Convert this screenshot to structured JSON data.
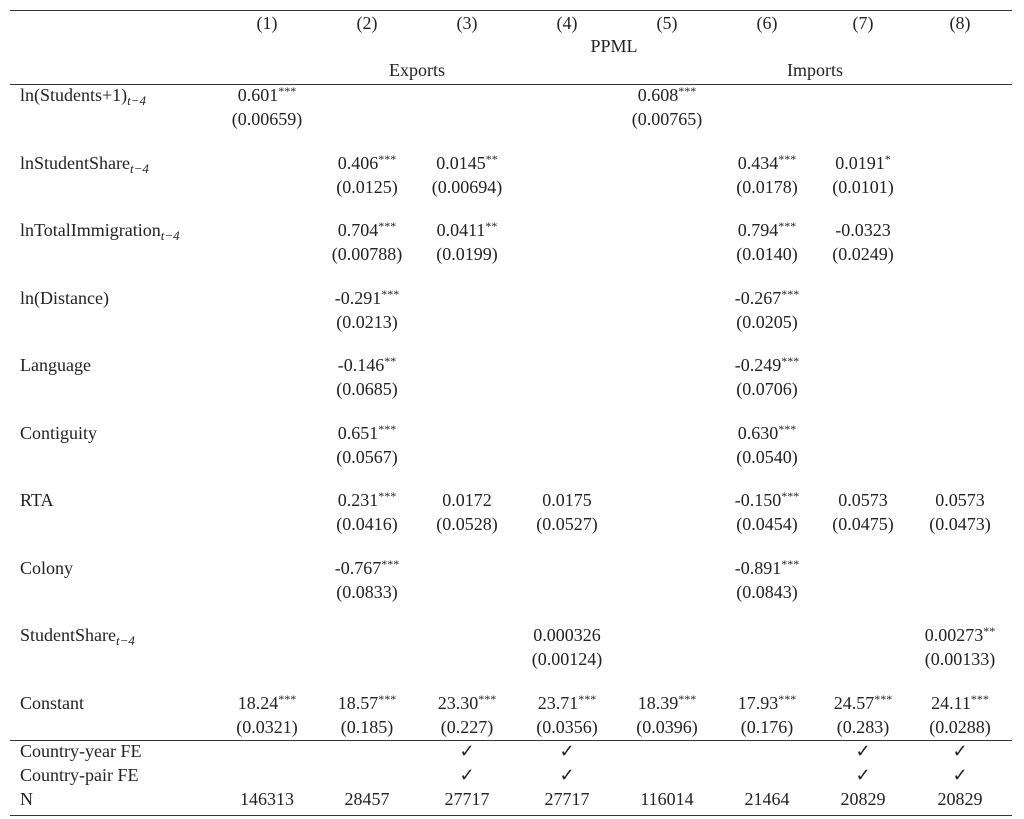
{
  "header": {
    "columns": [
      "(1)",
      "(2)",
      "(3)",
      "(4)",
      "(5)",
      "(6)",
      "(7)",
      "(8)"
    ],
    "method": "PPML",
    "groups": [
      "Exports",
      "Imports"
    ]
  },
  "rows": [
    {
      "label": "ln(Students+1)",
      "sub": "t−4",
      "cells": [
        {
          "coef": "0.601",
          "stars": "***",
          "se": "(0.00659)"
        },
        null,
        null,
        null,
        {
          "coef": "0.608",
          "stars": "***",
          "se": "(0.00765)"
        },
        null,
        null,
        null
      ]
    },
    {
      "label": "lnStudentShare",
      "sub": "t−4",
      "cells": [
        null,
        {
          "coef": "0.406",
          "stars": "***",
          "se": "(0.0125)"
        },
        {
          "coef": "0.0145",
          "stars": "**",
          "se": "(0.00694)"
        },
        null,
        null,
        {
          "coef": "0.434",
          "stars": "***",
          "se": "(0.0178)"
        },
        {
          "coef": "0.0191",
          "stars": "*",
          "se": "(0.0101)"
        },
        null
      ]
    },
    {
      "label": "lnTotalImmigration",
      "sub": "t−4",
      "cells": [
        null,
        {
          "coef": "0.704",
          "stars": "***",
          "se": "(0.00788)"
        },
        {
          "coef": "0.0411",
          "stars": "**",
          "se": "(0.0199)"
        },
        null,
        null,
        {
          "coef": "0.794",
          "stars": "***",
          "se": "(0.0140)"
        },
        {
          "coef": "-0.0323",
          "se": "(0.0249)"
        },
        null
      ]
    },
    {
      "label": "ln(Distance)",
      "cells": [
        null,
        {
          "coef": "-0.291",
          "stars": "***",
          "se": "(0.0213)"
        },
        null,
        null,
        null,
        {
          "coef": "-0.267",
          "stars": "***",
          "se": "(0.0205)"
        },
        null,
        null
      ]
    },
    {
      "label": "Language",
      "cells": [
        null,
        {
          "coef": "-0.146",
          "stars": "**",
          "se": "(0.0685)"
        },
        null,
        null,
        null,
        {
          "coef": "-0.249",
          "stars": "***",
          "se": "(0.0706)"
        },
        null,
        null
      ]
    },
    {
      "label": "Contiguity",
      "cells": [
        null,
        {
          "coef": "0.651",
          "stars": "***",
          "se": "(0.0567)"
        },
        null,
        null,
        null,
        {
          "coef": "0.630",
          "stars": "***",
          "se": "(0.0540)"
        },
        null,
        null
      ]
    },
    {
      "label": "RTA",
      "cells": [
        null,
        {
          "coef": "0.231",
          "stars": "***",
          "se": "(0.0416)"
        },
        {
          "coef": "0.0172",
          "se": "(0.0528)"
        },
        {
          "coef": "0.0175",
          "se": "(0.0527)"
        },
        null,
        {
          "coef": "-0.150",
          "stars": "***",
          "se": "(0.0454)"
        },
        {
          "coef": "0.0573",
          "se": "(0.0475)"
        },
        {
          "coef": "0.0573",
          "se": "(0.0473)"
        }
      ]
    },
    {
      "label": "Colony",
      "cells": [
        null,
        {
          "coef": "-0.767",
          "stars": "***",
          "se": "(0.0833)"
        },
        null,
        null,
        null,
        {
          "coef": "-0.891",
          "stars": "***",
          "se": "(0.0843)"
        },
        null,
        null
      ]
    },
    {
      "label": "StudentShare",
      "sub": "t−4",
      "cells": [
        null,
        null,
        null,
        {
          "coef": "0.000326",
          "se": "(0.00124)"
        },
        null,
        null,
        null,
        {
          "coef": "0.00273",
          "stars": "**",
          "se": "(0.00133)"
        }
      ]
    },
    {
      "label": "Constant",
      "cells": [
        {
          "coef": "18.24",
          "stars": "***",
          "se": "(0.0321)"
        },
        {
          "coef": "18.57",
          "stars": "***",
          "se": "(0.185)"
        },
        {
          "coef": "23.30",
          "stars": "***",
          "se": "(0.227)"
        },
        {
          "coef": "23.71",
          "stars": "***",
          "se": "(0.0356)"
        },
        {
          "coef": "18.39",
          "stars": "***",
          "se": "(0.0396)"
        },
        {
          "coef": "17.93",
          "stars": "***",
          "se": "(0.176)"
        },
        {
          "coef": "24.57",
          "stars": "***",
          "se": "(0.283)"
        },
        {
          "coef": "24.11",
          "stars": "***",
          "se": "(0.0288)"
        }
      ]
    }
  ],
  "footer": [
    {
      "label": "Country-year FE",
      "cells": [
        null,
        null,
        "✓",
        "✓",
        null,
        null,
        "✓",
        "✓"
      ]
    },
    {
      "label": "Country-pair FE",
      "cells": [
        null,
        null,
        "✓",
        "✓",
        null,
        null,
        "✓",
        "✓"
      ]
    },
    {
      "label": "N",
      "cells": [
        "146313",
        "28457",
        "27717",
        "27717",
        "116014",
        "21464",
        "20829",
        "20829"
      ]
    }
  ]
}
